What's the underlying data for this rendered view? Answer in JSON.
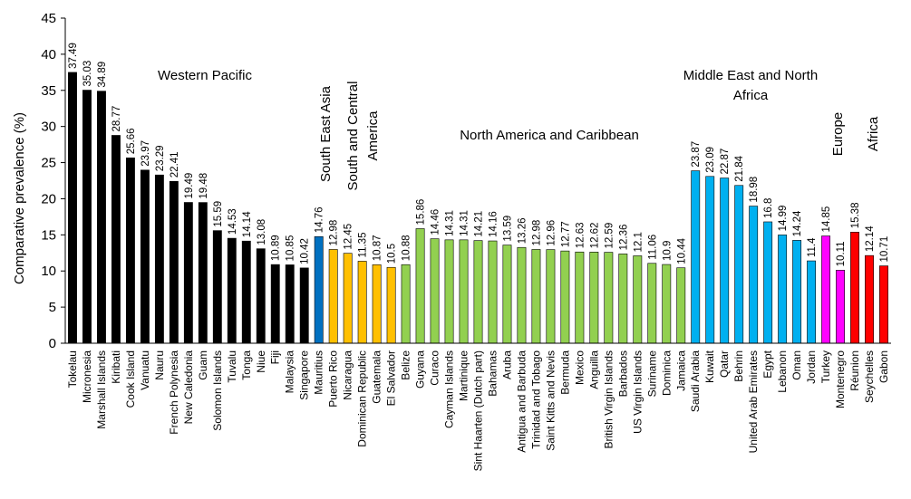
{
  "chart_data": {
    "type": "bar",
    "ylabel": "Comparative prevalence (%)",
    "xlabel": "",
    "ylim": [
      0,
      45
    ],
    "yticks": [
      0,
      5,
      10,
      15,
      20,
      25,
      30,
      35,
      40,
      45
    ],
    "grid": false,
    "legend": "none",
    "categories": [
      "Tokelau",
      "Micronesia",
      "Marshall Islands",
      "Kiribati",
      "Cook Island",
      "Vanuatu",
      "Nauru",
      "French Polynesia",
      "New Caledonia",
      "Guam",
      "Solomon Islands",
      "Tuvalu",
      "Tonga",
      "Niue",
      "Fiji",
      "Malaysia",
      "Singapore",
      "Mauritius",
      "Puerto Rico",
      "Nicaragua",
      "Dominican Republic",
      "Guatemala",
      "El Salvador",
      "Belize",
      "Guyana",
      "Curaco",
      "Cayman Islands",
      "Martinique",
      "Sint Haarten (Dutch part)",
      "Bahamas",
      "Aruba",
      "Antigua and Barbuda",
      "Trinidad and Tobago",
      "Saint Kitts and Nevis",
      "Bermuda",
      "Mexico",
      "Anguilla",
      "British Virgin Islands",
      "Barbados",
      "US Virgin Islands",
      "Suriname",
      "Dominica",
      "Jamaica",
      "Saudi Arabia",
      "Kuwait",
      "Qatar",
      "Behrin",
      "United Arab Emirates",
      "Egypt",
      "Lebanon",
      "Oman",
      "Jordan",
      "Turkey",
      "Montenegro",
      "Réunion",
      "Seychelles",
      "Gabon"
    ],
    "values": [
      37.49,
      35.03,
      34.89,
      28.77,
      25.66,
      23.97,
      23.29,
      22.41,
      19.49,
      19.48,
      15.59,
      14.53,
      14.14,
      13.08,
      10.89,
      10.85,
      10.42,
      14.76,
      12.98,
      12.45,
      11.35,
      10.87,
      10.5,
      10.88,
      15.86,
      14.46,
      14.31,
      14.31,
      14.21,
      14.16,
      13.59,
      13.26,
      12.98,
      12.96,
      12.77,
      12.63,
      12.62,
      12.59,
      12.36,
      12.1,
      11.06,
      10.9,
      10.44,
      23.87,
      23.09,
      22.87,
      21.84,
      18.98,
      16.8,
      14.99,
      14.24,
      11.4,
      14.85,
      10.11,
      15.38,
      12.14,
      10.71
    ],
    "value_labels": [
      "37.49",
      "35.03",
      "34.89",
      "28.77",
      "25.66",
      "23.97",
      "23.29",
      "22.41",
      "19.49",
      "19.48",
      "15.59",
      "14.53",
      "14.14",
      "13.08",
      "10.89",
      "10.85",
      "10.42",
      "14.76",
      "12.98",
      "12.45",
      "11.35",
      "10.87",
      "10.5",
      "10.88",
      "15.86",
      "14.46",
      "14.31",
      "14.31",
      "14.21",
      "14.16",
      "13.59",
      "13.26",
      "12.98",
      "12.96",
      "12.77",
      "12.63",
      "12.62",
      "12.59",
      "12.36",
      "12.1",
      "11.06",
      "10.9",
      "10.44",
      "23.87",
      "23.09",
      "22.87",
      "21.84",
      "18.98",
      "16.8",
      "14.99",
      "14.24",
      "11.4",
      "14.85",
      "10.11",
      "15.38",
      "12.14",
      "10.71"
    ],
    "groups": [
      {
        "name": "Western Pacific",
        "label_lines": [
          "Western Pacific"
        ],
        "color": "#000000",
        "start": 0,
        "end": 16,
        "label_orientation": "horizontal"
      },
      {
        "name": "South East Asia",
        "label_lines": [
          "South East Asia"
        ],
        "color": "#0070C0",
        "start": 17,
        "end": 17,
        "label_orientation": "vertical"
      },
      {
        "name": "South and Central America",
        "label_lines": [
          "South and Central",
          "America"
        ],
        "color": "#FFC000",
        "start": 18,
        "end": 22,
        "label_orientation": "vertical"
      },
      {
        "name": "North America and Caribbean",
        "label_lines": [
          "North America and Caribbean"
        ],
        "color": "#92D050",
        "start": 23,
        "end": 42,
        "label_orientation": "horizontal"
      },
      {
        "name": "Middle East and North Africa",
        "label_lines": [
          "Middle East and North",
          "Africa"
        ],
        "color": "#00B0F0",
        "start": 43,
        "end": 51,
        "label_orientation": "horizontal"
      },
      {
        "name": "Europe",
        "label_lines": [
          "Europe"
        ],
        "color": "#FF00FF",
        "start": 52,
        "end": 53,
        "label_orientation": "vertical"
      },
      {
        "name": "Africa",
        "label_lines": [
          "Africa"
        ],
        "color": "#FF0000",
        "start": 54,
        "end": 56,
        "label_orientation": "vertical"
      }
    ]
  }
}
